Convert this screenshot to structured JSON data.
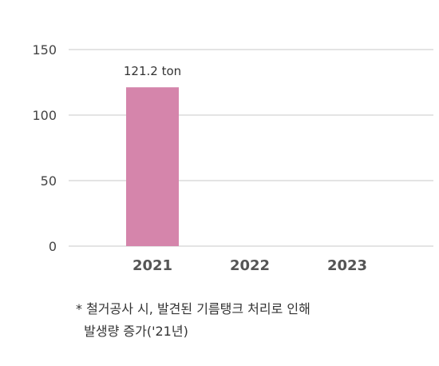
{
  "chart_data": {
    "type": "bar",
    "categories": [
      "2021",
      "2022",
      "2023"
    ],
    "values": [
      121.2,
      null,
      null
    ],
    "data_labels": [
      "121.2 ton",
      "",
      ""
    ],
    "yticks": [
      "150",
      "100",
      "50",
      "0"
    ],
    "ylim": [
      0,
      150
    ],
    "grid": true,
    "bar_color": "#d585ab"
  },
  "footnote": {
    "line1": "* 철거공사 시, 발견된 기름탱크 처리로 인해",
    "line2": "  발생량 증가('21년)"
  }
}
